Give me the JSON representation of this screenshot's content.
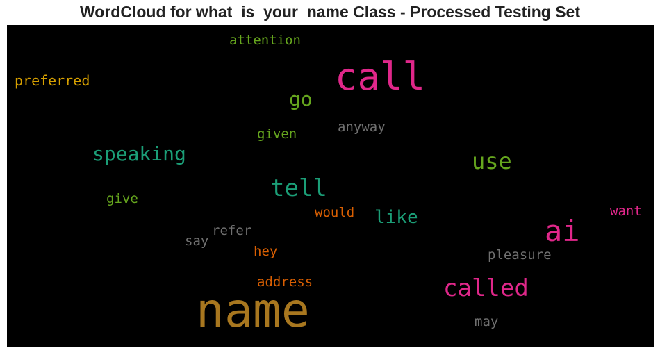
{
  "chart_data": {
    "type": "wordcloud",
    "title": "WordCloud for what_is_your_name Class - Processed Testing Set",
    "background": "#000000",
    "words": [
      {
        "text": "name",
        "color": "#a8771f"
      },
      {
        "text": "call",
        "color": "#e0278a"
      },
      {
        "text": "ai",
        "color": "#e0278a"
      },
      {
        "text": "called",
        "color": "#e0278a"
      },
      {
        "text": "tell",
        "color": "#1b9e77"
      },
      {
        "text": "use",
        "color": "#66a61e"
      },
      {
        "text": "speaking",
        "color": "#1b9e77"
      },
      {
        "text": "go",
        "color": "#66a61e"
      },
      {
        "text": "like",
        "color": "#1b9e77"
      },
      {
        "text": "preferred",
        "color": "#d7a000"
      },
      {
        "text": "attention",
        "color": "#66a61e"
      },
      {
        "text": "given",
        "color": "#66a61e"
      },
      {
        "text": "anyway",
        "color": "#707070"
      },
      {
        "text": "give",
        "color": "#66a61e"
      },
      {
        "text": "would",
        "color": "#d95f02"
      },
      {
        "text": "want",
        "color": "#e0278a"
      },
      {
        "text": "refer",
        "color": "#707070"
      },
      {
        "text": "say",
        "color": "#707070"
      },
      {
        "text": "hey",
        "color": "#d95f02"
      },
      {
        "text": "pleasure",
        "color": "#707070"
      },
      {
        "text": "address",
        "color": "#d95f02"
      },
      {
        "text": "may",
        "color": "#707070"
      }
    ]
  }
}
